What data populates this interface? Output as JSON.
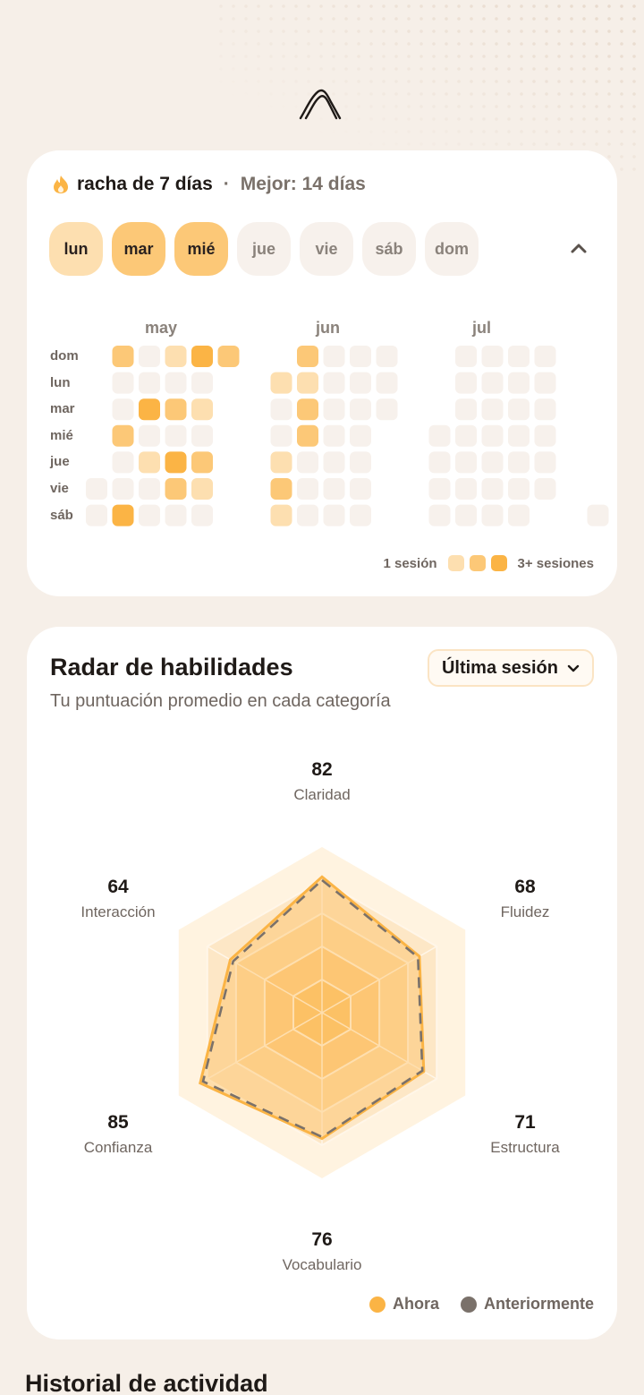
{
  "streak": {
    "label": "racha de 7 días",
    "separator": "·",
    "best": "Mejor: 14 días",
    "icon": "flame-icon"
  },
  "week_days": [
    {
      "label": "lun",
      "level": 1
    },
    {
      "label": "mar",
      "level": 2
    },
    {
      "label": "mié",
      "level": 2
    },
    {
      "label": "jue",
      "level": 0
    },
    {
      "label": "vie",
      "level": 0
    },
    {
      "label": "sáb",
      "level": 0
    },
    {
      "label": "dom",
      "level": 0
    }
  ],
  "calendar": {
    "months": [
      "may",
      "jun",
      "jul"
    ],
    "weekday_labels": [
      "dom",
      "lun",
      "mar",
      "mié",
      "jue",
      "vie",
      "sáb"
    ],
    "colors": [
      "#f7f1ec",
      "#fddfb0",
      "#fcc877",
      "#fbb445"
    ],
    "weeks": [
      [
        null,
        null,
        null,
        null,
        null,
        0,
        0
      ],
      [
        2,
        0,
        0,
        2,
        0,
        0,
        3
      ],
      [
        0,
        0,
        3,
        0,
        1,
        0,
        0
      ],
      [
        1,
        0,
        2,
        0,
        3,
        2,
        0
      ],
      [
        3,
        0,
        1,
        0,
        2,
        1,
        0
      ],
      [
        2,
        null,
        null,
        null,
        null,
        null,
        null
      ],
      null,
      [
        null,
        1,
        0,
        0,
        1,
        2,
        1
      ],
      [
        2,
        1,
        2,
        2,
        0,
        0,
        0
      ],
      [
        0,
        0,
        0,
        0,
        0,
        0,
        0
      ],
      [
        0,
        0,
        0,
        0,
        0,
        0,
        0
      ],
      [
        0,
        0,
        0,
        null,
        null,
        null,
        null
      ],
      null,
      [
        null,
        null,
        null,
        0,
        0,
        0,
        0
      ],
      [
        0,
        0,
        0,
        0,
        0,
        0,
        0
      ],
      [
        0,
        0,
        0,
        0,
        0,
        0,
        0
      ],
      [
        0,
        0,
        0,
        0,
        0,
        0,
        0
      ],
      [
        0,
        0,
        0,
        0,
        0,
        0,
        null
      ],
      [
        null,
        null,
        null,
        null,
        null,
        null,
        null
      ],
      [
        null,
        null,
        null,
        null,
        null,
        null,
        0
      ]
    ],
    "legend_min": "1 sesión",
    "legend_max": "3+ sesiones"
  },
  "radar": {
    "title": "Radar de habilidades",
    "subtitle": "Tu puntuación promedio en cada categoría",
    "select_label": "Última sesión",
    "max": 100,
    "axes": [
      {
        "name": "Claridad",
        "value": 82
      },
      {
        "name": "Fluidez",
        "value": 68
      },
      {
        "name": "Estructura",
        "value": 71
      },
      {
        "name": "Vocabulario",
        "value": 76
      },
      {
        "name": "Confianza",
        "value": 85
      },
      {
        "name": "Interacción",
        "value": 64
      }
    ],
    "current": [
      82,
      68,
      71,
      76,
      85,
      64
    ],
    "previous": [
      80,
      67,
      70,
      75,
      83,
      62
    ],
    "legend_now": "Ahora",
    "legend_before": "Anteriormente",
    "color_now": "#fbb445",
    "color_before": "#7a716a"
  },
  "history": {
    "title": "Historial de actividad"
  }
}
